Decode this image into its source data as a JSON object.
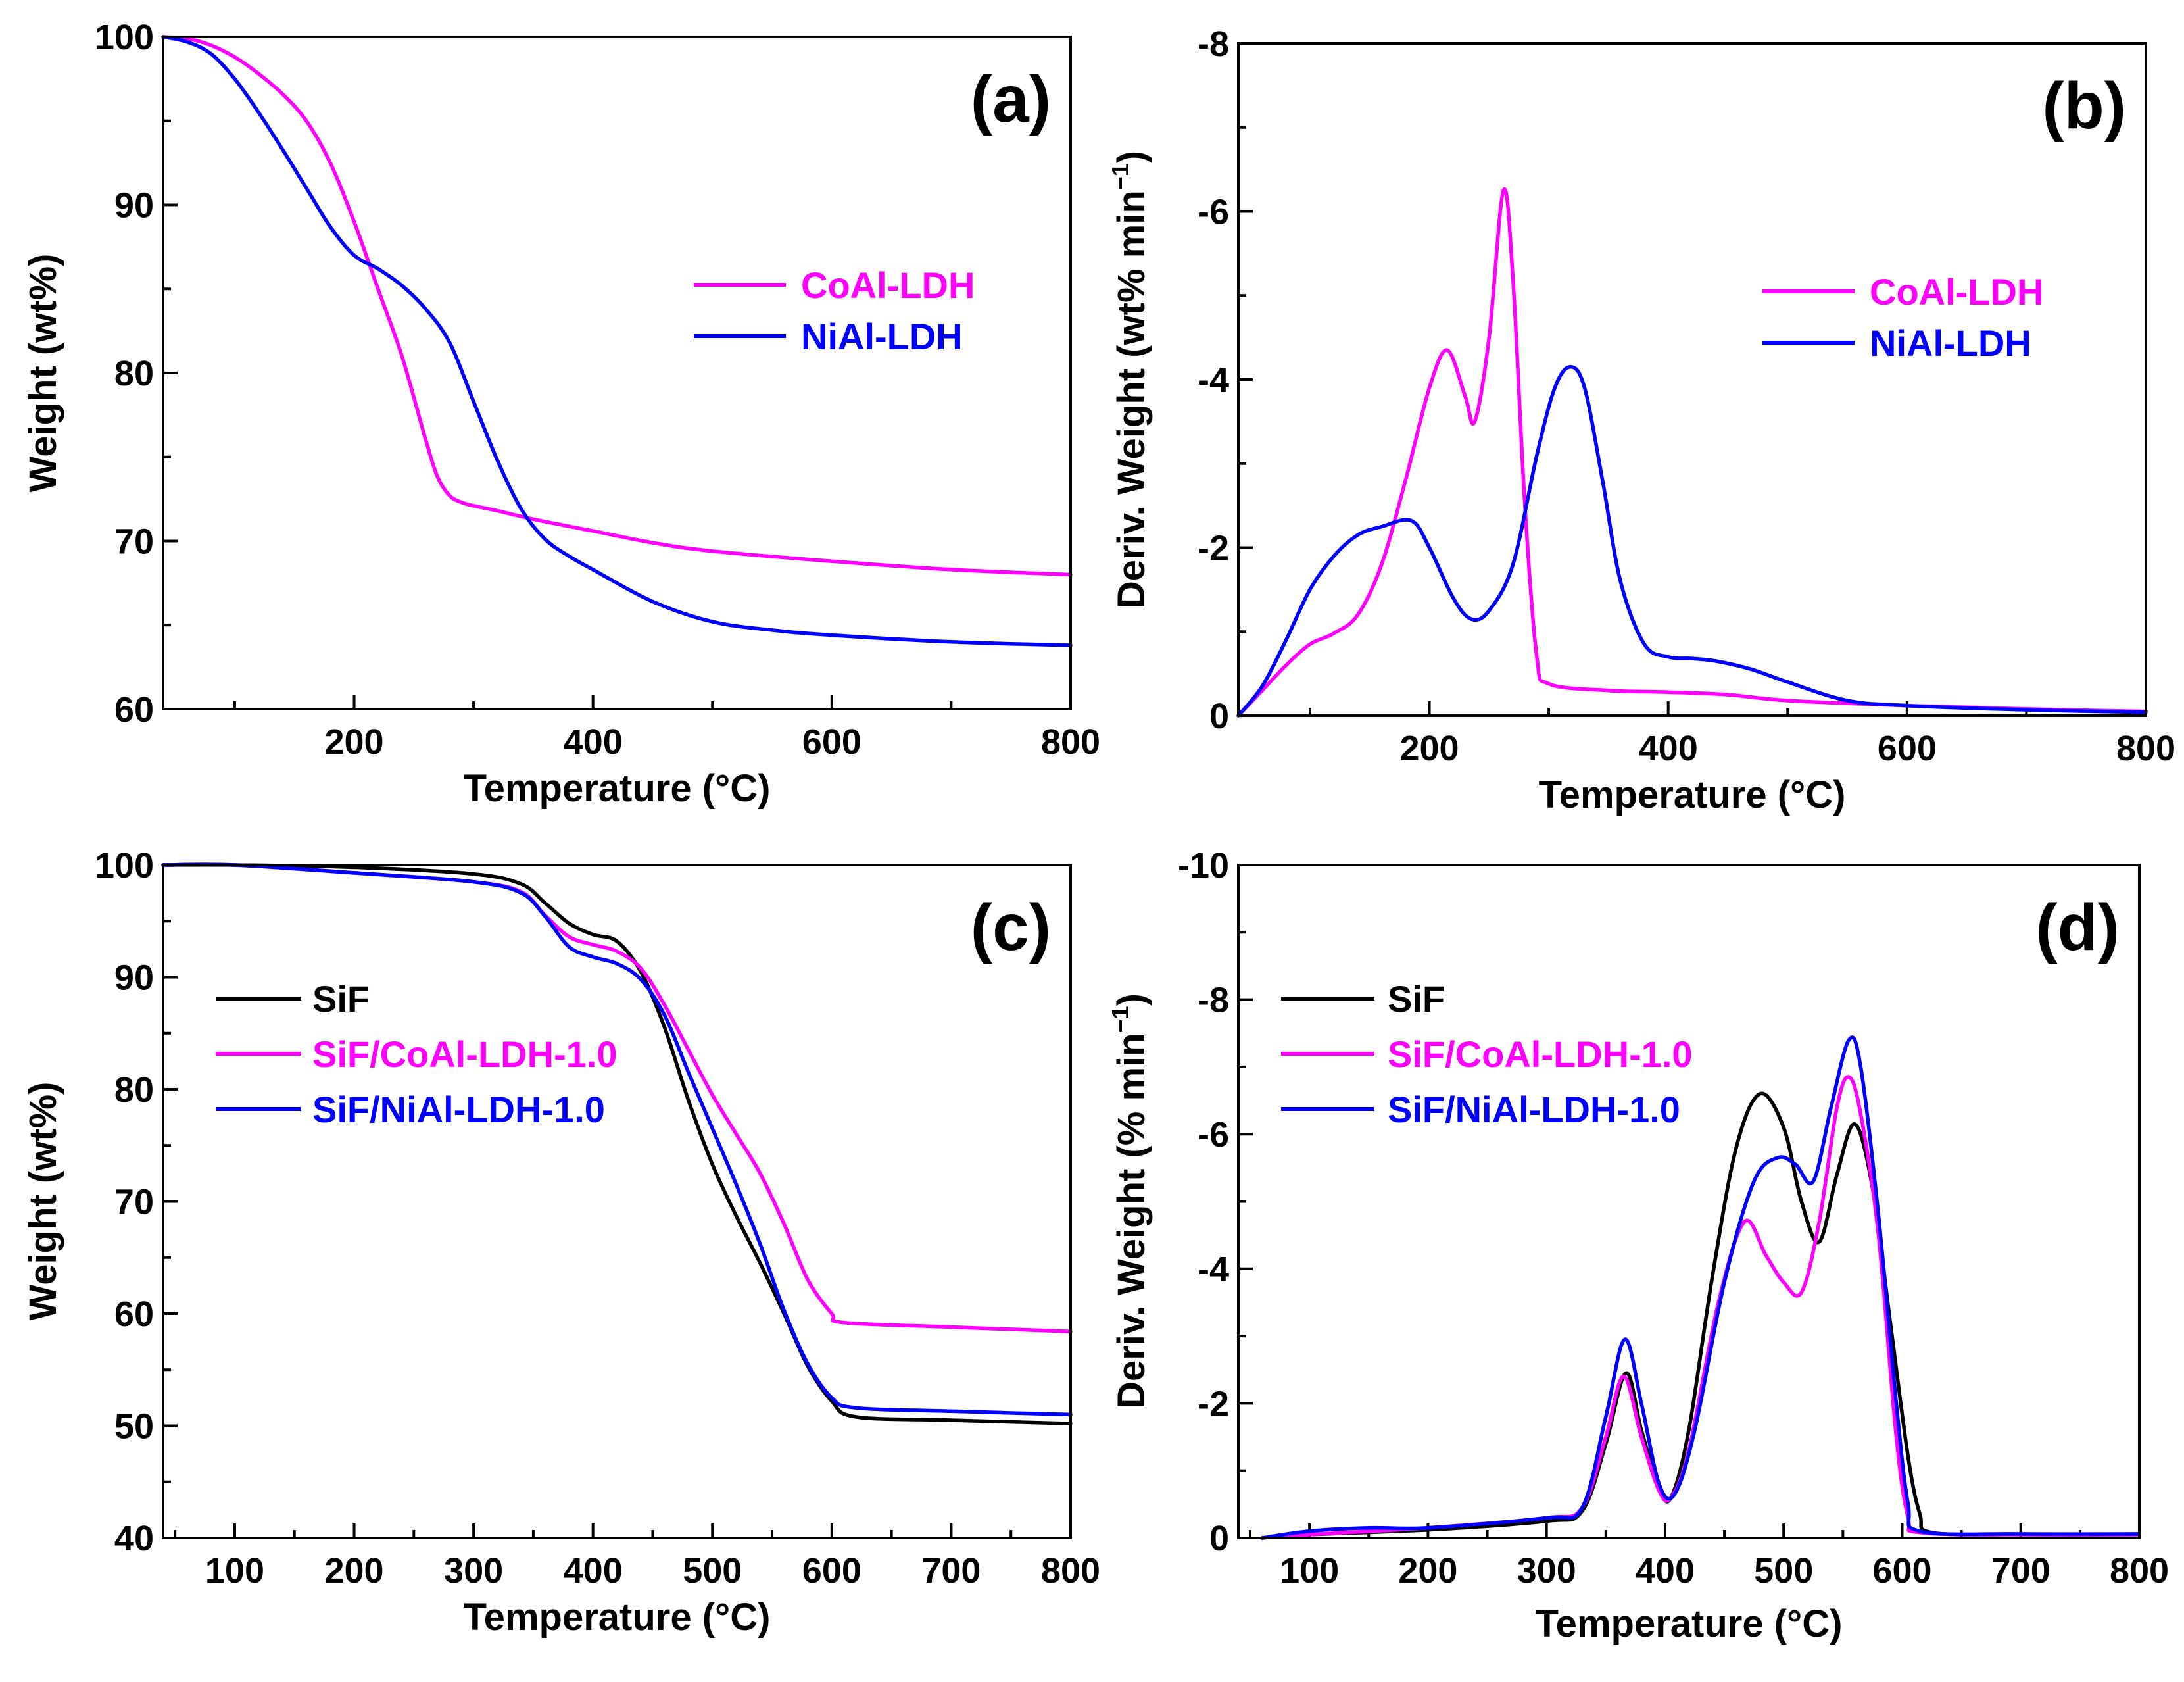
{
  "colors": {
    "CoAl": "#ff00ff",
    "NiAl": "#0000ff",
    "SiF": "#000000",
    "axis": "#000000"
  },
  "chart_data": [
    {
      "id": "a",
      "type": "line",
      "panel_label": "(a)",
      "xlabel": "Temperature (°C)",
      "ylabel": "Weight (wt%)",
      "xlim": [
        40,
        800
      ],
      "ylim": [
        60,
        100
      ],
      "y_inverted": false,
      "xticks": [
        200,
        400,
        600,
        800
      ],
      "xticklabels": [
        "200",
        "400",
        "600",
        "800"
      ],
      "xminor": [
        100,
        300,
        500,
        700
      ],
      "yticks": [
        60,
        70,
        80,
        90,
        100
      ],
      "yticklabels": [
        "60",
        "70",
        "80",
        "90",
        "100"
      ],
      "yminor": [
        65,
        75,
        85,
        95
      ],
      "legend_position": "upper-right-middle",
      "series": [
        {
          "name": "CoAl-LDH",
          "color_key": "CoAl",
          "x": [
            40,
            60,
            80,
            100,
            120,
            140,
            160,
            180,
            200,
            220,
            240,
            260,
            270,
            280,
            290,
            300,
            320,
            350,
            400,
            450,
            500,
            600,
            700,
            800
          ],
          "y": [
            100,
            99.9,
            99.5,
            98.8,
            97.8,
            96.6,
            95,
            92.5,
            89,
            85,
            81,
            76,
            73.8,
            72.7,
            72.3,
            72.1,
            71.8,
            71.3,
            70.6,
            69.9,
            69.4,
            68.8,
            68.3,
            68
          ]
        },
        {
          "name": "NiAl-LDH",
          "color_key": "NiAl",
          "x": [
            40,
            60,
            80,
            100,
            120,
            140,
            160,
            180,
            200,
            220,
            240,
            260,
            280,
            300,
            320,
            340,
            360,
            380,
            400,
            450,
            500,
            550,
            600,
            700,
            800
          ],
          "y": [
            100,
            99.7,
            99,
            97.5,
            95.5,
            93.3,
            91,
            88.7,
            87,
            86.2,
            85.2,
            83.8,
            81.8,
            78.3,
            74.8,
            71.9,
            70.1,
            69.1,
            68.3,
            66.4,
            65.2,
            64.7,
            64.4,
            64,
            63.8
          ]
        }
      ]
    },
    {
      "id": "b",
      "type": "line",
      "panel_label": "(b)",
      "xlabel": "Temperature (°C)",
      "ylabel": "Deriv. Weight (wt% min",
      "ylabel_sup": "−1",
      "ylabel_close": ")",
      "xlim": [
        40,
        800
      ],
      "ylim": [
        0,
        -8
      ],
      "y_inverted": true,
      "xticks": [
        200,
        400,
        600,
        800
      ],
      "xticklabels": [
        "200",
        "400",
        "600",
        "800"
      ],
      "xminor": [
        100,
        300,
        500,
        700
      ],
      "yticks": [
        0,
        -2,
        -4,
        -6,
        -8
      ],
      "yticklabels": [
        "0",
        "-2",
        "-4",
        "-6",
        "-8"
      ],
      "yminor": [
        -1,
        -3,
        -5,
        -7
      ],
      "legend_position": "upper-right-middle",
      "series": [
        {
          "name": "CoAl-LDH",
          "color_key": "CoAl",
          "x": [
            40,
            60,
            80,
            100,
            120,
            140,
            160,
            180,
            200,
            215,
            230,
            238,
            250,
            262,
            270,
            280,
            290,
            300,
            350,
            400,
            450,
            500,
            600,
            700,
            800
          ],
          "y": [
            0,
            -0.3,
            -0.6,
            -0.85,
            -0.98,
            -1.2,
            -1.8,
            -2.8,
            -3.9,
            -4.35,
            -3.8,
            -3.5,
            -4.5,
            -6.25,
            -5.2,
            -2.5,
            -0.7,
            -0.38,
            -0.3,
            -0.28,
            -0.25,
            -0.18,
            -0.12,
            -0.08,
            -0.05
          ]
        },
        {
          "name": "NiAl-LDH",
          "color_key": "NiAl",
          "x": [
            40,
            60,
            80,
            100,
            120,
            140,
            160,
            185,
            200,
            220,
            235,
            250,
            270,
            290,
            305,
            318,
            330,
            345,
            360,
            380,
            400,
            420,
            440,
            470,
            500,
            550,
            600,
            700,
            800
          ],
          "y": [
            0,
            -0.35,
            -0.9,
            -1.5,
            -1.9,
            -2.15,
            -2.25,
            -2.32,
            -2.0,
            -1.4,
            -1.15,
            -1.25,
            -1.8,
            -3.1,
            -3.9,
            -4.15,
            -3.9,
            -2.8,
            -1.6,
            -0.85,
            -0.7,
            -0.68,
            -0.65,
            -0.55,
            -0.4,
            -0.18,
            -0.12,
            -0.07,
            -0.04
          ]
        }
      ]
    },
    {
      "id": "c",
      "type": "line",
      "panel_label": "(c)",
      "xlabel": "Temperature (°C)",
      "ylabel": "Weight (wt%)",
      "xlim": [
        40,
        800
      ],
      "ylim": [
        40,
        100
      ],
      "y_inverted": false,
      "xticks": [
        100,
        200,
        300,
        400,
        500,
        600,
        700,
        800
      ],
      "xticklabels": [
        "100",
        "200",
        "300",
        "400",
        "500",
        "600",
        "700",
        "800"
      ],
      "xminor": [
        50,
        150,
        250,
        350,
        450,
        550,
        650,
        750
      ],
      "yticks": [
        40,
        50,
        60,
        70,
        80,
        90,
        100
      ],
      "yticklabels": [
        "40",
        "50",
        "60",
        "70",
        "80",
        "90",
        "100"
      ],
      "yminor": [
        45,
        55,
        65,
        75,
        85,
        95
      ],
      "legend_position": "upper-left-middle",
      "series": [
        {
          "name": "SiF",
          "color_key": "SiF",
          "x": [
            40,
            100,
            200,
            300,
            340,
            360,
            380,
            400,
            420,
            440,
            460,
            480,
            500,
            520,
            540,
            560,
            580,
            600,
            620,
            700,
            800
          ],
          "y": [
            100,
            100,
            99.8,
            99.2,
            98.3,
            96.6,
            94.8,
            93.8,
            93.2,
            90.5,
            85.5,
            79,
            73.3,
            68.7,
            64.5,
            60,
            55.3,
            52.2,
            50.8,
            50.5,
            50.2
          ]
        },
        {
          "name": "SiF/CoAl-LDH-1.0",
          "color_key": "CoAl",
          "x": [
            40,
            100,
            200,
            300,
            340,
            360,
            380,
            400,
            420,
            440,
            460,
            480,
            500,
            520,
            540,
            560,
            580,
            600,
            610,
            700,
            800
          ],
          "y": [
            100,
            100,
            99.3,
            98.5,
            97.6,
            95.5,
            93.6,
            92.9,
            92.3,
            90.8,
            87.5,
            83.5,
            79.5,
            76,
            72.5,
            68,
            63,
            60,
            59.2,
            58.8,
            58.4
          ]
        },
        {
          "name": "SiF/NiAl-LDH-1.0",
          "color_key": "NiAl",
          "x": [
            40,
            100,
            200,
            300,
            340,
            360,
            380,
            400,
            420,
            440,
            460,
            480,
            500,
            520,
            540,
            560,
            580,
            600,
            620,
            700,
            800
          ],
          "y": [
            100,
            100,
            99.3,
            98.5,
            97.5,
            95.4,
            92.7,
            91.8,
            91.2,
            89.8,
            86.6,
            81.5,
            76.5,
            71.5,
            66.2,
            60.3,
            55.5,
            52.5,
            51.6,
            51.3,
            51
          ]
        }
      ]
    },
    {
      "id": "d",
      "type": "line",
      "panel_label": "(d)",
      "xlabel": "Temperature (°C)",
      "ylabel": "Deriv. Weight (% min",
      "ylabel_sup": "−1",
      "ylabel_close": ")",
      "xlim": [
        40,
        800
      ],
      "ylim": [
        0,
        -10
      ],
      "y_inverted": true,
      "xticks": [
        100,
        200,
        300,
        400,
        500,
        600,
        700,
        800
      ],
      "xticklabels": [
        "100",
        "200",
        "300",
        "400",
        "500",
        "600",
        "700",
        "800"
      ],
      "xminor": [
        50,
        150,
        250,
        350,
        450,
        550,
        650,
        750
      ],
      "yticks": [
        0,
        -2,
        -4,
        -6,
        -8,
        -10
      ],
      "yticklabels": [
        "0",
        "-2",
        "-4",
        "-6",
        "-8",
        "-10"
      ],
      "yminor": [
        -1,
        -3,
        -5,
        -7,
        -9
      ],
      "legend_position": "upper-left-middle",
      "series": [
        {
          "name": "SiF",
          "color_key": "SiF",
          "x": [
            60,
            100,
            200,
            300,
            330,
            350,
            367,
            380,
            395,
            405,
            420,
            440,
            460,
            480,
            500,
            515,
            530,
            545,
            560,
            575,
            590,
            605,
            615,
            625,
            700,
            800
          ],
          "y": [
            0,
            -0.05,
            -0.12,
            -0.25,
            -0.4,
            -1.4,
            -2.45,
            -1.6,
            -0.75,
            -0.6,
            -1.6,
            -3.9,
            -5.8,
            -6.6,
            -6.1,
            -5.0,
            -4.4,
            -5.4,
            -6.15,
            -5.2,
            -3.2,
            -1.2,
            -0.35,
            -0.08,
            -0.05,
            -0.05
          ]
        },
        {
          "name": "SiF/CoAl-LDH-1.0",
          "color_key": "CoAl",
          "x": [
            60,
            100,
            200,
            300,
            330,
            350,
            365,
            380,
            395,
            405,
            420,
            445,
            467,
            485,
            500,
            515,
            530,
            545,
            555,
            565,
            580,
            595,
            605,
            615,
            700,
            800
          ],
          "y": [
            0,
            -0.05,
            -0.15,
            -0.3,
            -0.45,
            -1.5,
            -2.4,
            -1.5,
            -0.7,
            -0.6,
            -1.3,
            -3.5,
            -4.7,
            -4.2,
            -3.8,
            -3.65,
            -4.7,
            -6.4,
            -6.85,
            -6.3,
            -4.5,
            -1.5,
            -0.3,
            -0.08,
            -0.05,
            -0.05
          ]
        },
        {
          "name": "SiF/NiAl-LDH-1.0",
          "color_key": "NiAl",
          "x": [
            60,
            100,
            150,
            200,
            300,
            330,
            350,
            366,
            380,
            395,
            408,
            425,
            450,
            475,
            495,
            510,
            525,
            540,
            555,
            565,
            580,
            595,
            605,
            615,
            700,
            800
          ],
          "y": [
            0,
            -0.1,
            -0.15,
            -0.15,
            -0.3,
            -0.45,
            -1.8,
            -2.95,
            -2.0,
            -0.8,
            -0.65,
            -1.6,
            -3.8,
            -5.3,
            -5.65,
            -5.55,
            -5.3,
            -6.4,
            -7.4,
            -7.0,
            -4.8,
            -2.0,
            -0.5,
            -0.1,
            -0.06,
            -0.06
          ]
        }
      ]
    }
  ]
}
